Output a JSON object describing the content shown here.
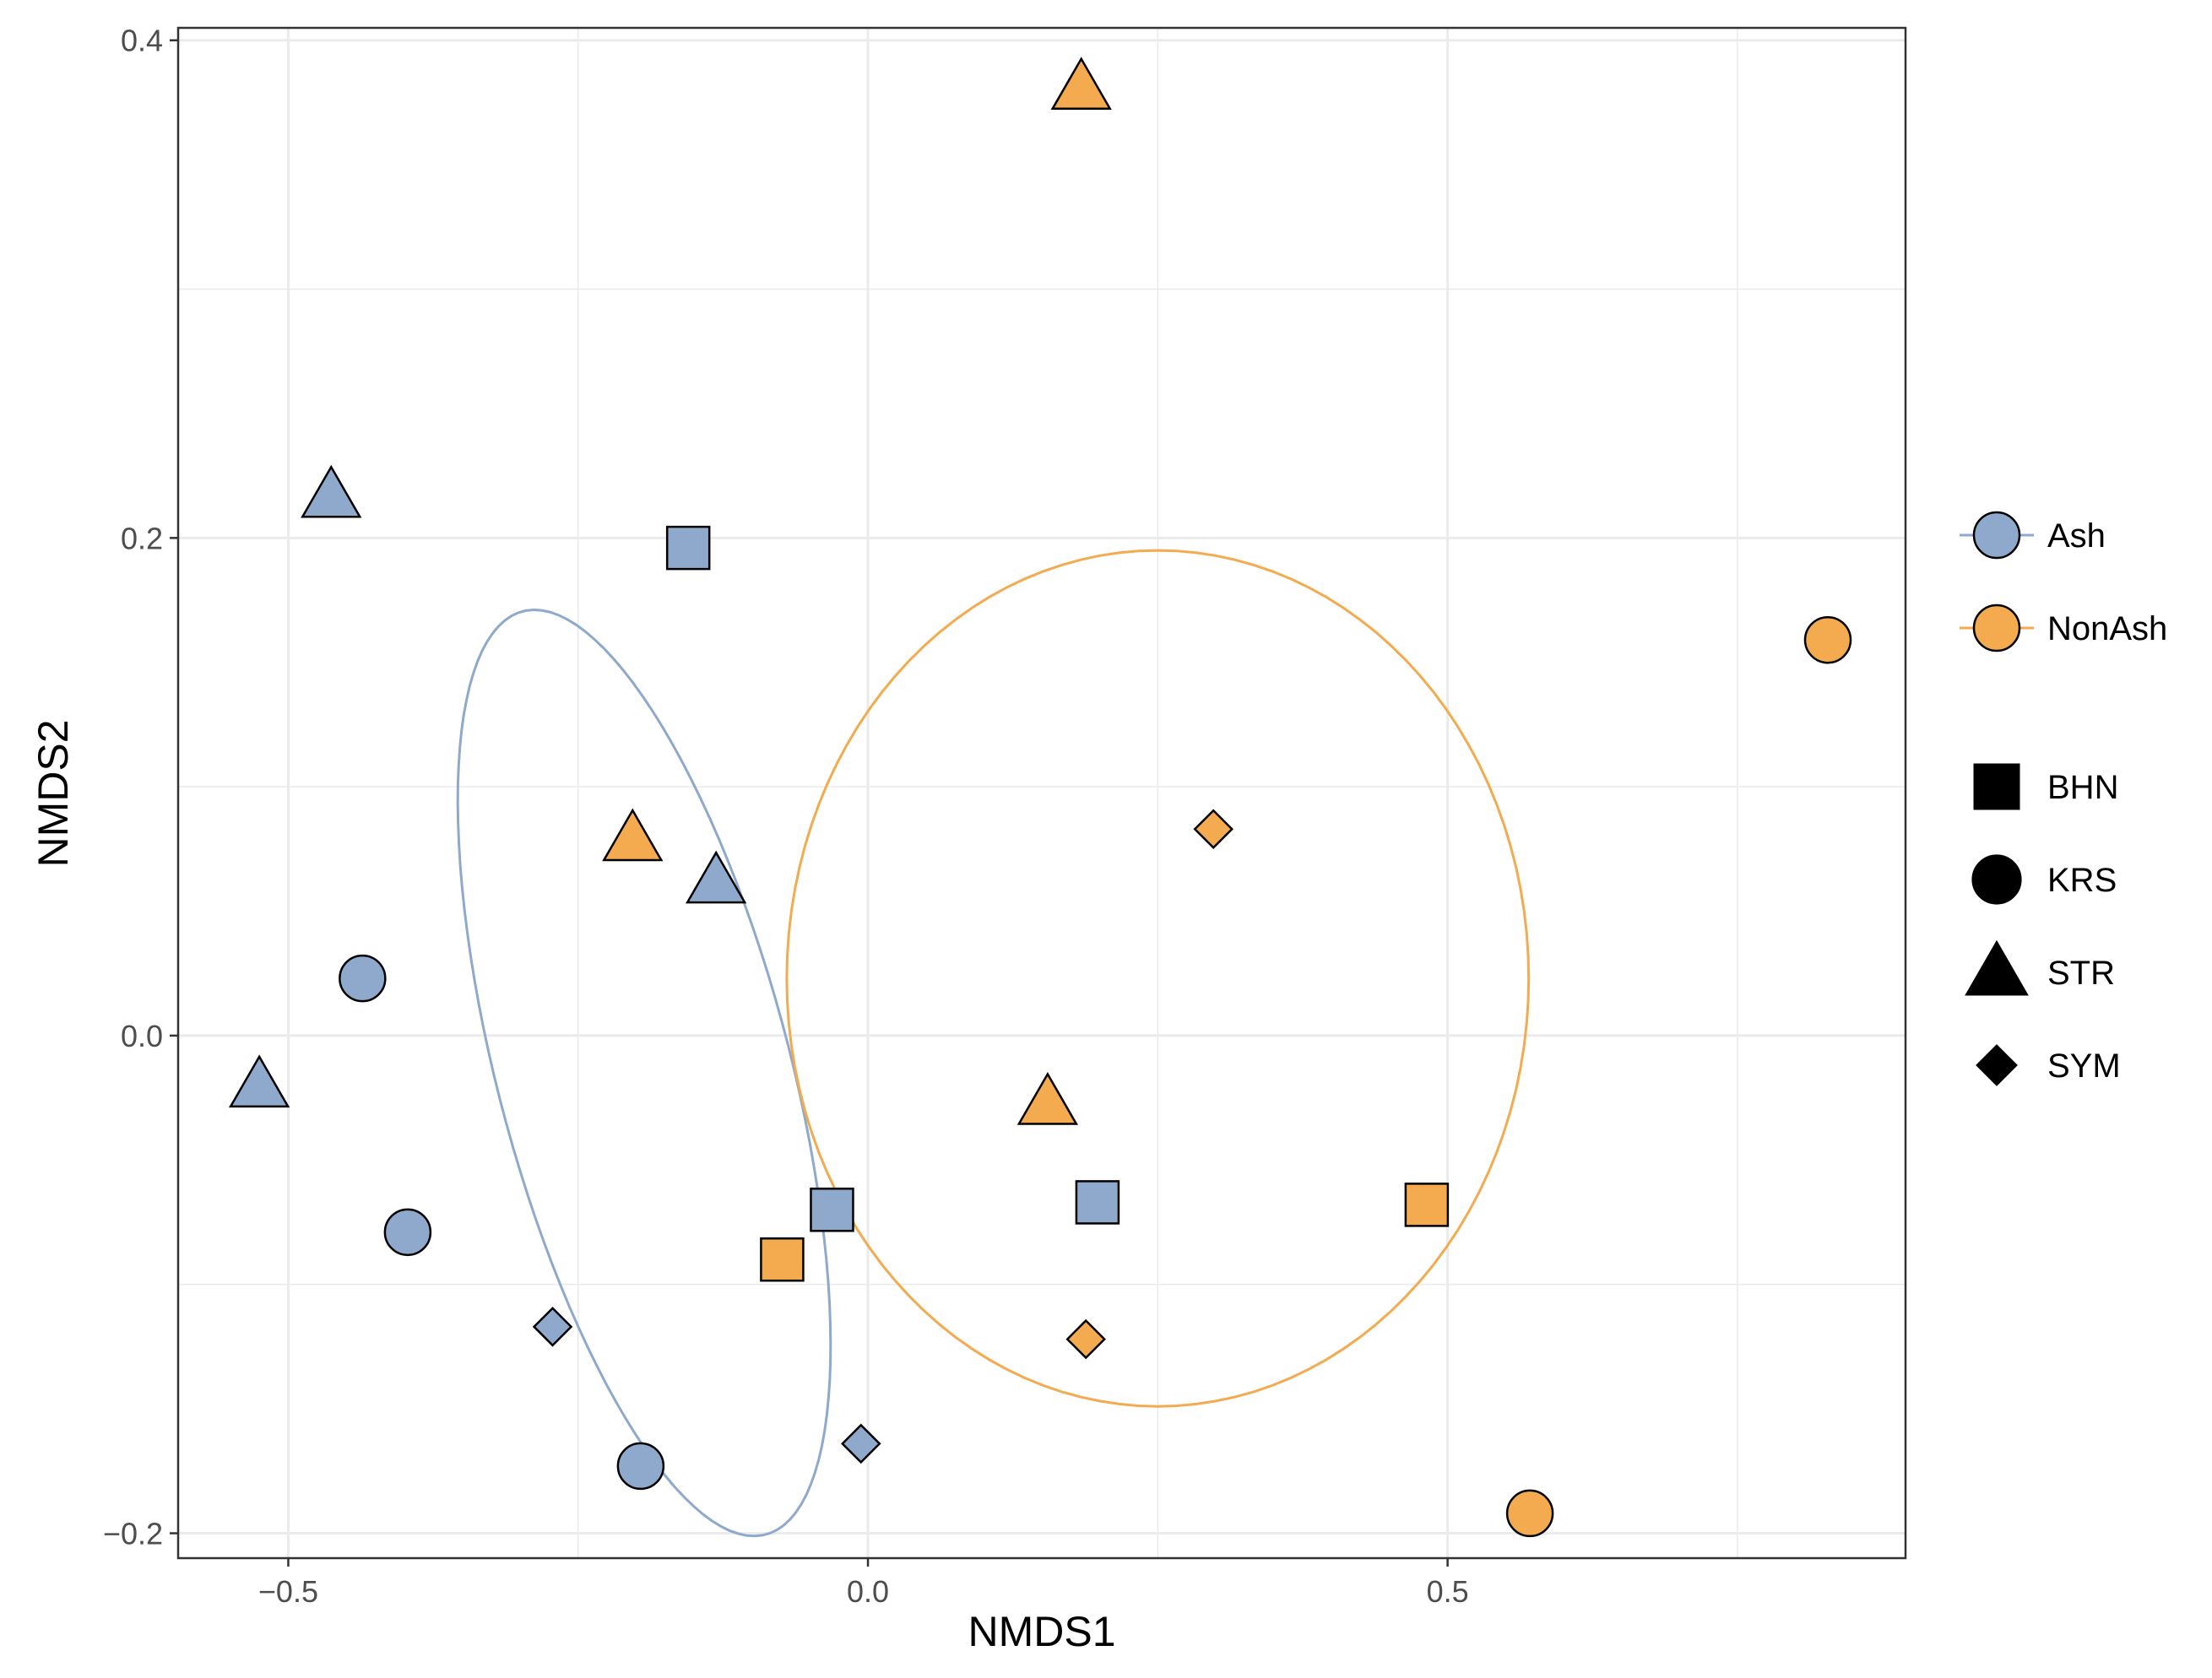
{
  "chart_data": {
    "type": "scatter",
    "title": "",
    "xlabel": "NMDS1",
    "ylabel": "NMDS2",
    "xlim": [
      -0.595,
      0.895
    ],
    "ylim": [
      -0.21,
      0.405
    ],
    "x_ticks": [
      -0.5,
      0.0,
      0.5
    ],
    "x_tick_labels": [
      "−0.5",
      "0.0",
      "0.5"
    ],
    "y_ticks": [
      -0.2,
      0.0,
      0.2,
      0.4
    ],
    "y_tick_labels": [
      "−0.2",
      "0.0",
      "0.2",
      "0.4"
    ],
    "grid": true,
    "legend_position": "right",
    "group_legend": [
      {
        "name": "Ash",
        "color": "#8EA9CC"
      },
      {
        "name": "NonAsh",
        "color": "#F4AA4E"
      }
    ],
    "shape_legend": [
      {
        "name": "BHN",
        "shape": "square"
      },
      {
        "name": "KRS",
        "shape": "circle"
      },
      {
        "name": "STR",
        "shape": "triangle"
      },
      {
        "name": "SYM",
        "shape": "diamond"
      }
    ],
    "series": [
      {
        "name": "Ash",
        "color": "#8EA9CC",
        "points": [
          {
            "x": -0.155,
            "y": 0.196,
            "shape": "square"
          },
          {
            "x": -0.031,
            "y": -0.07,
            "shape": "square"
          },
          {
            "x": 0.198,
            "y": -0.067,
            "shape": "square"
          },
          {
            "x": -0.436,
            "y": 0.023,
            "shape": "circle"
          },
          {
            "x": -0.397,
            "y": -0.079,
            "shape": "circle"
          },
          {
            "x": -0.196,
            "y": -0.173,
            "shape": "circle"
          },
          {
            "x": -0.463,
            "y": 0.217,
            "shape": "triangle"
          },
          {
            "x": -0.131,
            "y": 0.062,
            "shape": "triangle"
          },
          {
            "x": -0.525,
            "y": -0.02,
            "shape": "triangle"
          },
          {
            "x": -0.272,
            "y": -0.117,
            "shape": "diamond"
          },
          {
            "x": -0.006,
            "y": -0.164,
            "shape": "diamond"
          }
        ]
      },
      {
        "name": "NonAsh",
        "color": "#F4AA4E",
        "points": [
          {
            "x": -0.074,
            "y": -0.09,
            "shape": "square"
          },
          {
            "x": 0.482,
            "y": -0.068,
            "shape": "square"
          },
          {
            "x": 0.828,
            "y": 0.159,
            "shape": "circle"
          },
          {
            "x": 0.571,
            "y": -0.192,
            "shape": "circle"
          },
          {
            "x": 0.184,
            "y": 0.381,
            "shape": "triangle"
          },
          {
            "x": -0.203,
            "y": 0.079,
            "shape": "triangle"
          },
          {
            "x": 0.155,
            "y": -0.027,
            "shape": "triangle"
          },
          {
            "x": 0.298,
            "y": 0.083,
            "shape": "diamond"
          },
          {
            "x": 0.188,
            "y": -0.122,
            "shape": "diamond"
          }
        ]
      }
    ],
    "ellipses": [
      {
        "group": "Ash",
        "color": "#8EA9CC",
        "center": [
          -0.193,
          -0.015
        ],
        "semi_axes": [
          0.22,
          0.11
        ],
        "angle_deg": -52
      },
      {
        "group": "NonAsh",
        "color": "#F4AA4E",
        "center": [
          0.25,
          0.023
        ],
        "semi_axes": [
          0.32,
          0.172
        ],
        "angle_deg": 0
      }
    ]
  }
}
